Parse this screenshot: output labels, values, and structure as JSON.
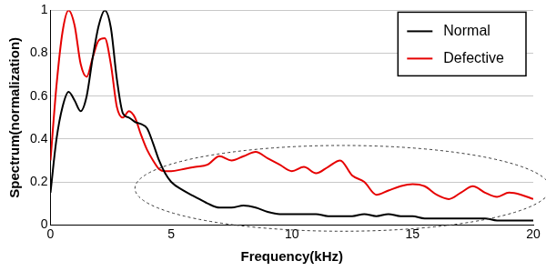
{
  "chart_data": {
    "type": "line",
    "x_label": "Frequency(kHz)",
    "y_label": "Spectrum(normalization)",
    "x": [
      0,
      0.25,
      0.5,
      0.75,
      1.0,
      1.25,
      1.5,
      1.75,
      2.0,
      2.25,
      2.5,
      2.75,
      3.0,
      3.25,
      3.5,
      3.75,
      4.0,
      4.25,
      4.5,
      4.75,
      5.0,
      5.5,
      6,
      6.5,
      7,
      7.5,
      8,
      8.5,
      9,
      9.5,
      10,
      10.5,
      11,
      11.5,
      12,
      12.5,
      13,
      13.5,
      14,
      14.5,
      15,
      15.5,
      16,
      16.5,
      17,
      17.5,
      18,
      18.5,
      19,
      19.5,
      20
    ],
    "series": [
      {
        "name": "Normal",
        "color": "#000000",
        "values": [
          0.15,
          0.4,
          0.55,
          0.62,
          0.58,
          0.53,
          0.6,
          0.78,
          0.93,
          1.0,
          0.92,
          0.68,
          0.52,
          0.5,
          0.48,
          0.47,
          0.45,
          0.38,
          0.3,
          0.24,
          0.2,
          0.16,
          0.13,
          0.1,
          0.08,
          0.08,
          0.09,
          0.08,
          0.06,
          0.05,
          0.05,
          0.05,
          0.05,
          0.04,
          0.04,
          0.04,
          0.05,
          0.04,
          0.05,
          0.04,
          0.04,
          0.03,
          0.03,
          0.03,
          0.03,
          0.03,
          0.03,
          0.02,
          0.02,
          0.02,
          0.02
        ]
      },
      {
        "name": "Defective",
        "color": "#e60000",
        "values": [
          0.3,
          0.65,
          0.9,
          1.0,
          0.93,
          0.75,
          0.69,
          0.78,
          0.86,
          0.87,
          0.75,
          0.55,
          0.5,
          0.53,
          0.5,
          0.42,
          0.35,
          0.3,
          0.26,
          0.25,
          0.25,
          0.26,
          0.27,
          0.28,
          0.32,
          0.3,
          0.32,
          0.34,
          0.31,
          0.28,
          0.25,
          0.27,
          0.24,
          0.27,
          0.3,
          0.23,
          0.2,
          0.14,
          0.16,
          0.18,
          0.19,
          0.18,
          0.14,
          0.12,
          0.15,
          0.18,
          0.15,
          0.13,
          0.15,
          0.14,
          0.12
        ]
      }
    ],
    "xlim": [
      0,
      20
    ],
    "xticks": [
      0,
      5,
      10,
      15,
      20
    ],
    "ylim": [
      0,
      1
    ],
    "yticks": [
      0,
      0.2,
      0.4,
      0.6,
      0.8,
      1
    ],
    "grid": "y",
    "legend": "upper right"
  }
}
